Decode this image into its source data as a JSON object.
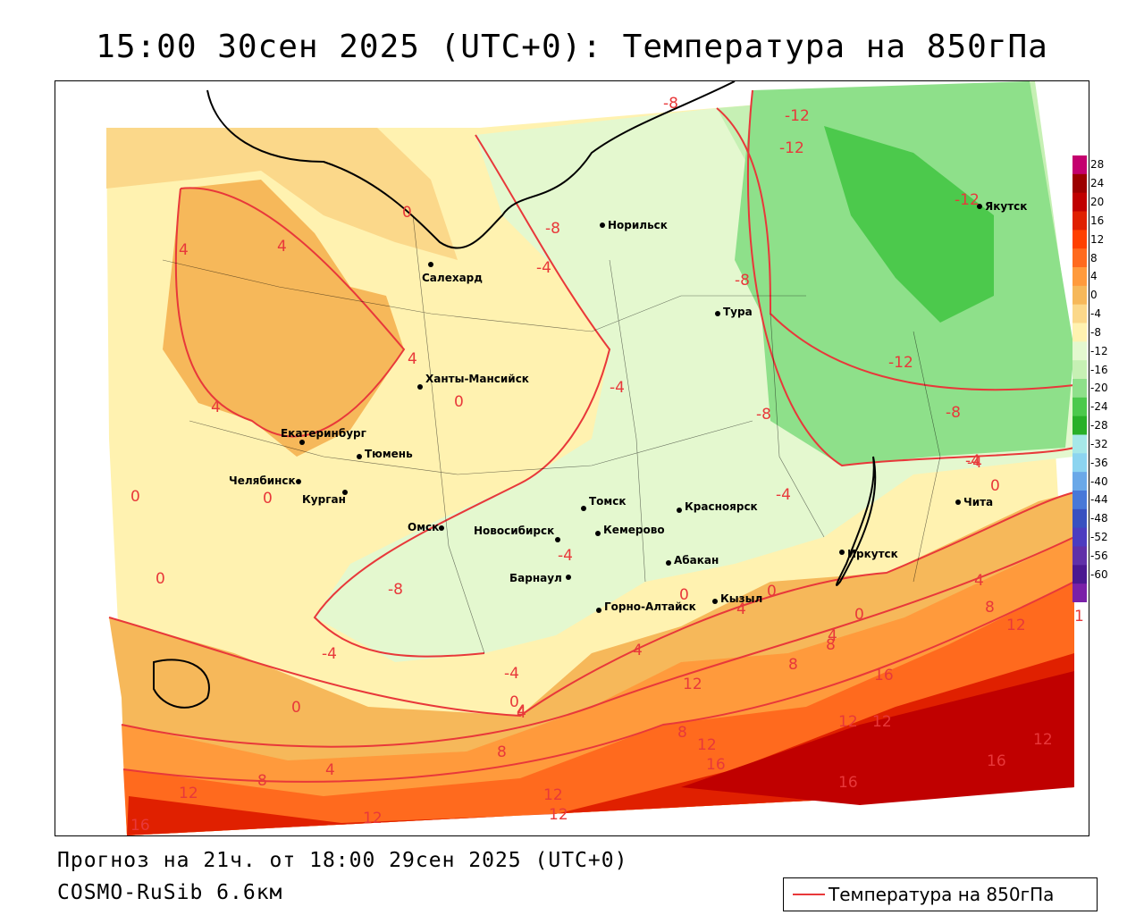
{
  "title": "15:00 30сен 2025 (UTC+0): Температура на 850гПа",
  "footer": {
    "forecast": "Прогноз на 21ч. от 18:00 29сен 2025 (UTC+0)",
    "model": "COSMO-RuSib 6.6км"
  },
  "legend": {
    "label": "Температура на 850гПа",
    "line_color": "#e8383a"
  },
  "colorbar": {
    "ticks": [
      "28",
      "24",
      "20",
      "16",
      "12",
      "8",
      "4",
      "0",
      "-4",
      "-8",
      "-12",
      "-16",
      "-20",
      "-24",
      "-28",
      "-32",
      "-36",
      "-40",
      "-44",
      "-48",
      "-52",
      "-56",
      "-60"
    ],
    "colors": [
      "#c4006e",
      "#9c0000",
      "#c00000",
      "#e02000",
      "#ff4000",
      "#ff6a1e",
      "#ff9a3c",
      "#f6b85a",
      "#fbd88a",
      "#fff2b0",
      "#e4f8cf",
      "#c6f0b4",
      "#8ee08a",
      "#4cc94c",
      "#28b028",
      "#a6e8e8",
      "#8cd4f0",
      "#6aa8e8",
      "#4878d8",
      "#3850c0",
      "#4c3cc0",
      "#6030a8",
      "#4a1890",
      "#7a20a8"
    ]
  },
  "cities": [
    {
      "name": "Норильск"
    },
    {
      "name": "Якутск"
    },
    {
      "name": "Салехард"
    },
    {
      "name": "Тура"
    },
    {
      "name": "Ханты-Мансийск"
    },
    {
      "name": "Екатеринбург"
    },
    {
      "name": "Тюмень"
    },
    {
      "name": "Челябинск"
    },
    {
      "name": "Курган"
    },
    {
      "name": "Омск"
    },
    {
      "name": "Новосибирск"
    },
    {
      "name": "Томск"
    },
    {
      "name": "Кемерово"
    },
    {
      "name": "Красноярск"
    },
    {
      "name": "Абакан"
    },
    {
      "name": "Барнаул"
    },
    {
      "name": "Горно-Алтайск"
    },
    {
      "name": "Кызыл"
    },
    {
      "name": "Иркутск"
    },
    {
      "name": "Чита"
    }
  ],
  "isotherm_labels": [
    "-8",
    "-12",
    "-12",
    "-12",
    "-8",
    "-4",
    "-4",
    "-8",
    "-4",
    "-8",
    "-12",
    "-8",
    "-4",
    "0",
    "0",
    "4",
    "4",
    "4",
    "4",
    "0",
    "0",
    "0",
    "0",
    "-8",
    "-4",
    "-4",
    "-4",
    "0",
    "0",
    "4",
    "4",
    "4",
    "0",
    "0",
    "8",
    "8",
    "12",
    "12",
    "16",
    "12",
    "8",
    "16",
    "16",
    "12",
    "12",
    "8",
    "4",
    "12",
    "12",
    "12",
    "12",
    "16",
    "8",
    "12",
    "16",
    "4",
    "4",
    "0",
    "-4",
    "4",
    "8",
    "1"
  ]
}
